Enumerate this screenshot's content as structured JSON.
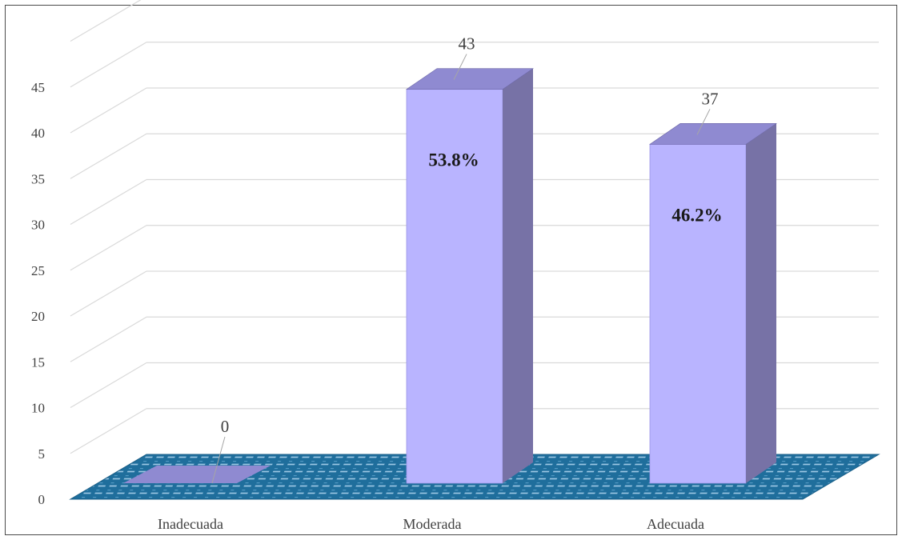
{
  "chart_data": {
    "type": "bar",
    "style": "3d-column",
    "categories": [
      "Inadecuada",
      "Moderada",
      "Adecuada"
    ],
    "values": [
      0,
      43,
      37
    ],
    "percent_labels": [
      "",
      "53.8%",
      "46.2%"
    ],
    "value_labels": [
      "0",
      "43",
      "37"
    ],
    "yticks": [
      "0",
      "5",
      "10",
      "15",
      "20",
      "25",
      "30",
      "35",
      "40",
      "45"
    ],
    "ylim": [
      0,
      50
    ],
    "grid": true,
    "legend": "none",
    "colors": {
      "bar_front": "#b9b4ff",
      "bar_side": "#7772a6",
      "bar_top": "#8f8ad1",
      "floor": "#1f6e9c",
      "gridline": "#d9d9d9"
    }
  }
}
